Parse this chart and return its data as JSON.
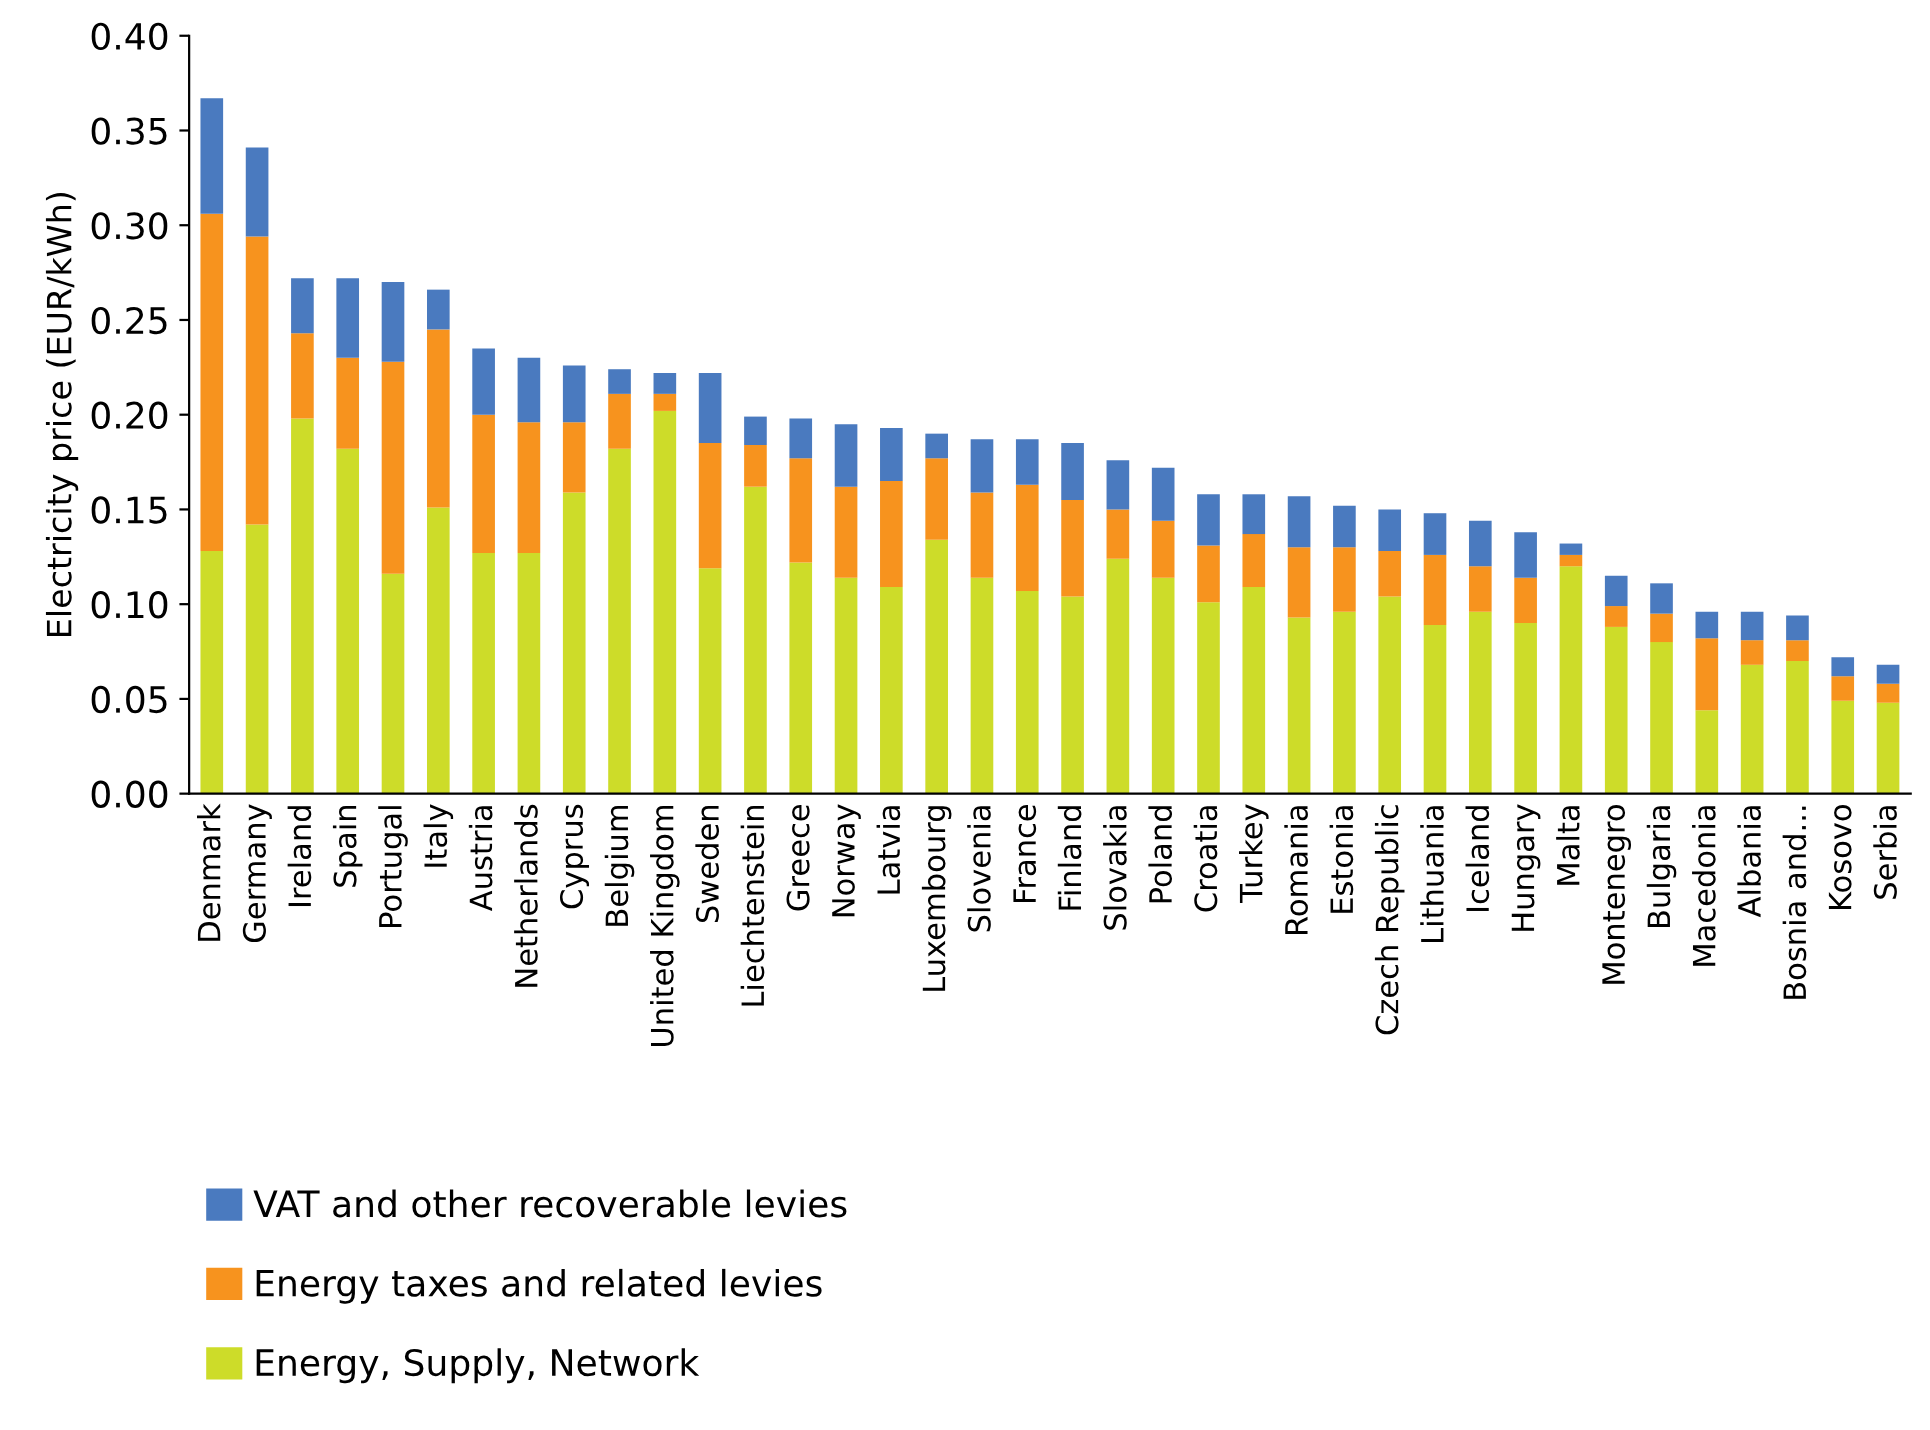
{
  "chart_data": {
    "type": "bar",
    "stacked": true,
    "ylabel": "Electricity price (EUR/kWh)",
    "categories": [
      "Denmark",
      "Germany",
      "Ireland",
      "Spain",
      "Portugal",
      "Italy",
      "Austria",
      "Netherlands",
      "Cyprus",
      "Belgium",
      "United Kingdom",
      "Sweden",
      "Liechtenstein",
      "Greece",
      "Norway",
      "Latvia",
      "Luxembourg",
      "Slovenia",
      "France",
      "Finland",
      "Slovakia",
      "Poland",
      "Croatia",
      "Turkey",
      "Romania",
      "Estonia",
      "Czech Republic",
      "Lithuania",
      "Iceland",
      "Hungary",
      "Malta",
      "Montenegro",
      "Bulgaria",
      "Macedonia",
      "Albania",
      "Bosnia and...",
      "Kosovo",
      "Serbia"
    ],
    "series": [
      {
        "name": "Energy, Supply, Network",
        "color": "#cddc29",
        "values": [
          0.128,
          0.142,
          0.198,
          0.182,
          0.116,
          0.151,
          0.127,
          0.127,
          0.159,
          0.182,
          0.202,
          0.119,
          0.162,
          0.122,
          0.114,
          0.109,
          0.134,
          0.114,
          0.107,
          0.104,
          0.124,
          0.114,
          0.101,
          0.109,
          0.093,
          0.096,
          0.104,
          0.089,
          0.096,
          0.09,
          0.12,
          0.088,
          0.08,
          0.044,
          0.068,
          0.07,
          0.049,
          0.048
        ]
      },
      {
        "name": "Energy taxes and related levies",
        "color": "#f7931e",
        "values": [
          0.178,
          0.152,
          0.045,
          0.048,
          0.112,
          0.094,
          0.073,
          0.069,
          0.037,
          0.029,
          0.009,
          0.066,
          0.022,
          0.055,
          0.048,
          0.056,
          0.043,
          0.045,
          0.056,
          0.051,
          0.026,
          0.03,
          0.03,
          0.028,
          0.037,
          0.034,
          0.024,
          0.037,
          0.024,
          0.024,
          0.006,
          0.011,
          0.015,
          0.038,
          0.013,
          0.011,
          0.013,
          0.01
        ]
      },
      {
        "name": "VAT and other recoverable levies",
        "color": "#4a7abf",
        "values": [
          0.061,
          0.047,
          0.029,
          0.042,
          0.042,
          0.021,
          0.035,
          0.034,
          0.03,
          0.013,
          0.011,
          0.037,
          0.015,
          0.021,
          0.033,
          0.028,
          0.013,
          0.028,
          0.024,
          0.03,
          0.026,
          0.028,
          0.027,
          0.021,
          0.027,
          0.022,
          0.022,
          0.022,
          0.024,
          0.024,
          0.006,
          0.016,
          0.016,
          0.014,
          0.015,
          0.013,
          0.01,
          0.01
        ]
      }
    ],
    "ylim": [
      0,
      0.4
    ],
    "yticks": [
      {
        "value": 0,
        "label": "0.00"
      },
      {
        "value": 0.05,
        "label": "0.05"
      },
      {
        "value": 0.1,
        "label": "0.10"
      },
      {
        "value": 0.15,
        "label": "0.15"
      },
      {
        "value": 0.2,
        "label": "0.20"
      },
      {
        "value": 0.25,
        "label": "0.25"
      },
      {
        "value": 0.3,
        "label": "0.30"
      },
      {
        "value": 0.35,
        "label": "0.35"
      },
      {
        "value": 0.4,
        "label": "0.40"
      }
    ],
    "grid": false,
    "legend": "bottom left"
  }
}
